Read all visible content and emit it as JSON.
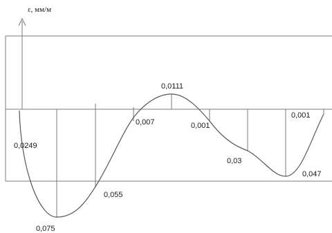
{
  "axis": {
    "title": "ε, мм/м"
  },
  "labels": [
    "0,0249",
    "0,075",
    "0,055",
    "0,007",
    "0,0111",
    "0,001",
    "0,03",
    "0,047",
    "0,001"
  ]
}
